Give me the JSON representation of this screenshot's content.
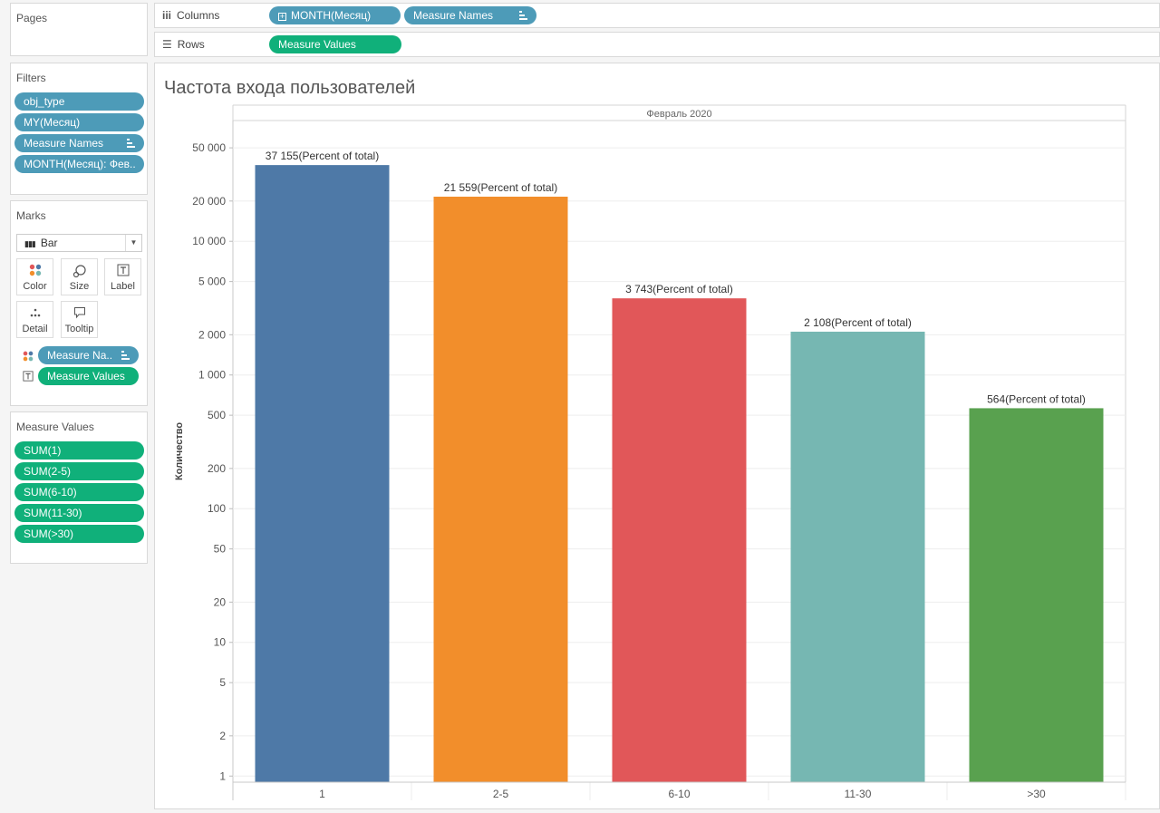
{
  "pages": {
    "title": "Pages"
  },
  "shelves": {
    "columns_label": "Columns",
    "columns_pills": [
      "MONTH(Месяц)",
      "Measure Names"
    ],
    "rows_label": "Rows",
    "rows_pills": [
      "Measure Values"
    ]
  },
  "filters": {
    "title": "Filters",
    "items": [
      "obj_type",
      "MY(Месяц)",
      "Measure Names",
      "MONTH(Месяц): Фев.."
    ]
  },
  "marks": {
    "title": "Marks",
    "type": "Bar",
    "buttons": [
      "Color",
      "Size",
      "Label",
      "Detail",
      "Tooltip"
    ],
    "fields": [
      "Measure Na..",
      "Measure Values"
    ]
  },
  "measure_values": {
    "title": "Measure Values",
    "items": [
      "SUM(1)",
      "SUM(2-5)",
      "SUM(6-10)",
      "SUM(11-30)",
      "SUM(>30)"
    ]
  },
  "chart_data": {
    "type": "bar",
    "title": "Частота входа пользователей",
    "header": "Февраль 2020",
    "ylabel": "Количество",
    "yscale": "log",
    "ylim": [
      0.9,
      80000
    ],
    "yticks": [
      1,
      2,
      5,
      10,
      20,
      50,
      100,
      200,
      500,
      1000,
      2000,
      5000,
      10000,
      20000,
      50000
    ],
    "ytick_labels": [
      "1",
      "2",
      "5",
      "10",
      "20",
      "50",
      "100",
      "200",
      "500",
      "1 000",
      "2 000",
      "5 000",
      "10 000",
      "20 000",
      "50 000"
    ],
    "categories": [
      "1",
      "2-5",
      "6-10",
      "11-30",
      ">30"
    ],
    "values": [
      37155,
      21559,
      3743,
      2108,
      564
    ],
    "data_labels": [
      "37 155(Percent of total)",
      "21 559(Percent of total)",
      "3 743(Percent of total)",
      "2 108(Percent of total)",
      "564(Percent of total)"
    ],
    "colors": [
      "#4e79a7",
      "#f28e2b",
      "#e15759",
      "#76b7b2",
      "#59a14f"
    ],
    "grid": true
  }
}
